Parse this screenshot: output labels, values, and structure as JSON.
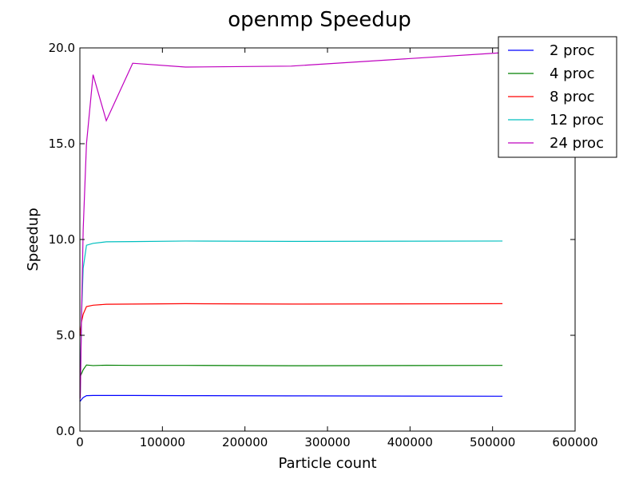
{
  "chart_data": {
    "type": "line",
    "title": "openmp Speedup",
    "xlabel": "Particle count",
    "ylabel": "Speedup",
    "xlim": [
      0,
      600000
    ],
    "ylim": [
      0,
      20
    ],
    "xticks": [
      0,
      100000,
      200000,
      300000,
      400000,
      500000,
      600000
    ],
    "xtick_labels": [
      "0",
      "100000",
      "200000",
      "300000",
      "400000",
      "500000",
      "600000"
    ],
    "yticks": [
      0,
      5,
      10,
      15,
      20
    ],
    "ytick_labels": [
      "0.0",
      "5.0",
      "10.0",
      "15.0",
      "20.0"
    ],
    "grid": false,
    "legend": "top-right",
    "x": [
      500,
      1000,
      2000,
      4000,
      8000,
      16000,
      32000,
      64000,
      128000,
      256000,
      512000
    ],
    "series": [
      {
        "name": "2 proc",
        "color": "#0000ff",
        "values": [
          1.55,
          1.6,
          1.65,
          1.75,
          1.85,
          1.86,
          1.86,
          1.86,
          1.85,
          1.84,
          1.82
        ]
      },
      {
        "name": "4 proc",
        "color": "#008000",
        "values": [
          2.8,
          2.9,
          3.0,
          3.2,
          3.45,
          3.42,
          3.44,
          3.43,
          3.43,
          3.41,
          3.43
        ]
      },
      {
        "name": "8 proc",
        "color": "#ff0000",
        "values": [
          5.0,
          5.3,
          5.7,
          6.1,
          6.5,
          6.57,
          6.62,
          6.63,
          6.65,
          6.63,
          6.65
        ]
      },
      {
        "name": "12 proc",
        "color": "#00bfbf",
        "values": [
          2.0,
          3.5,
          6.0,
          8.5,
          9.7,
          9.8,
          9.88,
          9.89,
          9.92,
          9.9,
          9.92
        ]
      },
      {
        "name": "24 proc",
        "color": "#bf00bf",
        "values": [
          1.7,
          3.0,
          6.0,
          10.5,
          15.0,
          18.6,
          16.2,
          19.2,
          19.0,
          19.05,
          19.75
        ]
      }
    ]
  }
}
